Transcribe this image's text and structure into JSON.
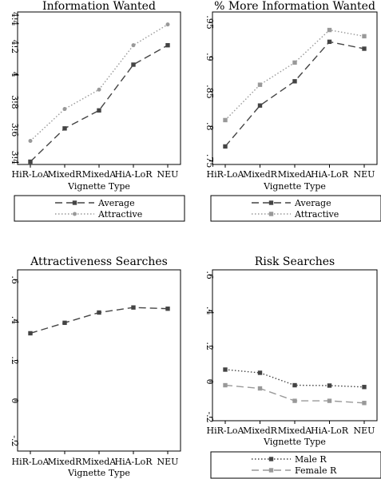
{
  "chart_data": [
    {
      "type": "line",
      "title": "Information Wanted",
      "xlabel": "Vignette Type",
      "ylabel": "",
      "categories": [
        "HiR-LoA",
        "MixedR",
        "MixedA",
        "HiA-LoR",
        "NEU"
      ],
      "yticks": [
        "3.4",
        "3.6",
        "3.8",
        "4",
        "4.2",
        "4.4"
      ],
      "ylim": [
        3.35,
        4.45
      ],
      "grid": false,
      "series": [
        {
          "name": "Average",
          "values": [
            3.37,
            3.61,
            3.74,
            4.07,
            4.21
          ],
          "color": "#444444",
          "dash": "long-dash",
          "marker": "square"
        },
        {
          "name": "Attractive",
          "values": [
            3.52,
            3.75,
            3.89,
            4.21,
            4.36
          ],
          "color": "#999999",
          "dash": "dot",
          "marker": "circle"
        }
      ],
      "legend": {
        "position": "bottom",
        "entries": [
          "Average",
          "Attractive"
        ]
      }
    },
    {
      "type": "line",
      "title": "% More Information Wanted",
      "xlabel": "Vignette Type",
      "ylabel": "",
      "categories": [
        "HiR-LoA",
        "MixedR",
        "MixedA",
        "HiA-LoR",
        "NEU"
      ],
      "yticks": [
        ".75",
        ".8",
        ".85",
        ".9",
        ".95"
      ],
      "ylim": [
        0.745,
        0.965
      ],
      "grid": false,
      "series": [
        {
          "name": "Average",
          "values": [
            0.771,
            0.83,
            0.865,
            0.922,
            0.912
          ],
          "color": "#444444",
          "dash": "long-dash",
          "marker": "square"
        },
        {
          "name": "Attractive",
          "values": [
            0.809,
            0.86,
            0.892,
            0.939,
            0.93
          ],
          "color": "#999999",
          "dash": "dot",
          "marker": "square"
        }
      ],
      "legend": {
        "position": "bottom",
        "entries": [
          "Average",
          "Attractive"
        ]
      }
    },
    {
      "type": "line",
      "title": "Attractiveness Searches",
      "xlabel": "Vignette Type",
      "ylabel": "",
      "categories": [
        "HiR-LoA",
        "MixedR",
        "MixedA",
        "HiA-LoR",
        "NEU"
      ],
      "yticks": [
        "-.2",
        "0",
        ".2",
        ".4",
        ".6"
      ],
      "ylim": [
        -0.25,
        0.65
      ],
      "grid": false,
      "series": [
        {
          "name": "",
          "values": [
            0.335,
            0.387,
            0.438,
            0.463,
            0.457
          ],
          "color": "#444444",
          "dash": "long-dash",
          "marker": "square"
        }
      ],
      "legend": null
    },
    {
      "type": "line",
      "title": "Risk Searches",
      "xlabel": "Vignette Type",
      "ylabel": "",
      "categories": [
        "HiR-LoA",
        "MixedR",
        "MixedA",
        "HiA-LoR",
        "NEU"
      ],
      "yticks": [
        "-.2",
        "0",
        ".2",
        ".4",
        ".6"
      ],
      "ylim": [
        -0.22,
        0.63
      ],
      "grid": false,
      "series": [
        {
          "name": "Male R",
          "values": [
            0.068,
            0.05,
            -0.02,
            -0.022,
            -0.03
          ],
          "color": "#444444",
          "dash": "dot",
          "marker": "square"
        },
        {
          "name": "Female R",
          "values": [
            -0.02,
            -0.038,
            -0.108,
            -0.108,
            -0.12
          ],
          "color": "#999999",
          "dash": "long-dash",
          "marker": "square"
        }
      ],
      "legend": {
        "position": "bottom",
        "entries": [
          "Male R",
          "Female R"
        ]
      }
    }
  ]
}
